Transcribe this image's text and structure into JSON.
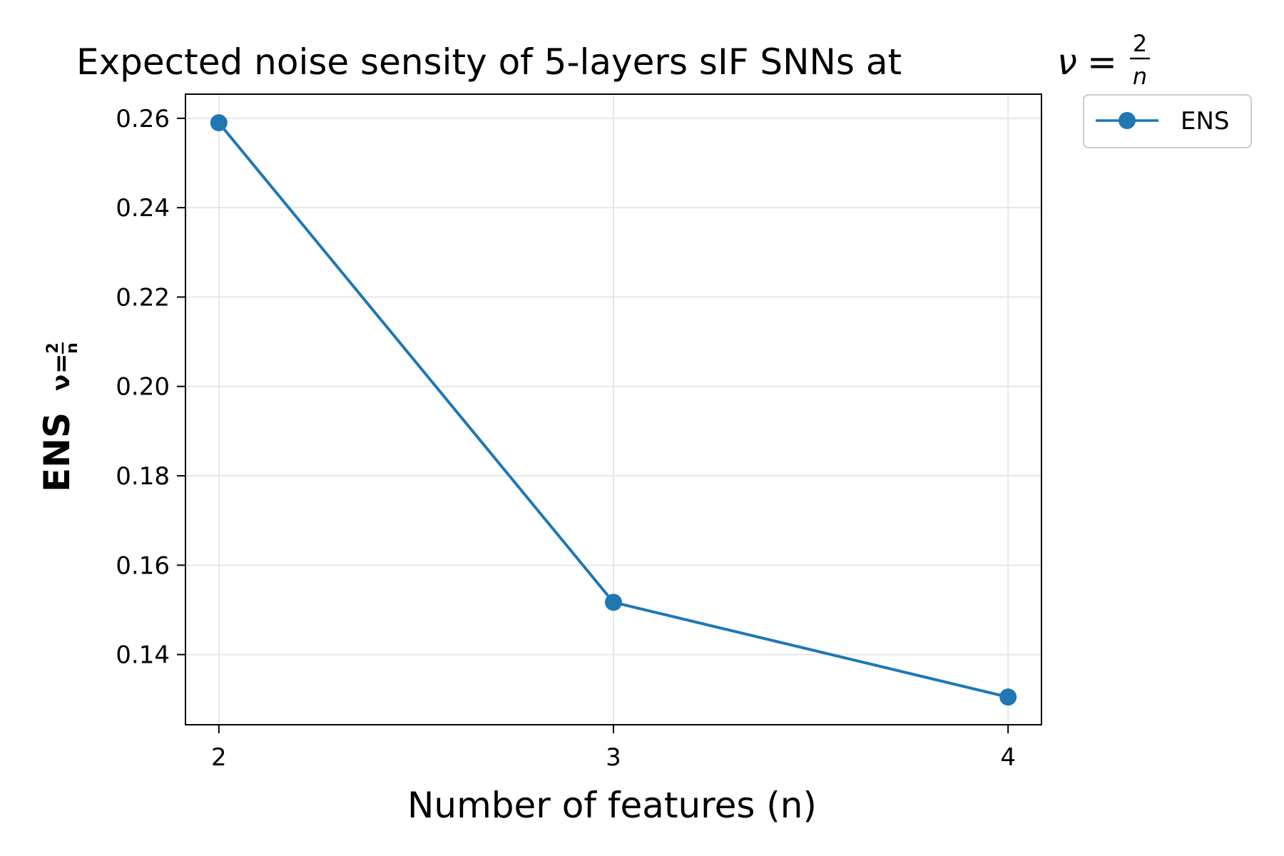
{
  "chart_data": {
    "type": "line",
    "title": "Expected noise sensity of 5-layers sIF SNNs at ν = 2/n",
    "title_text": "Expected noise sensity of 5-layers sIF SNNs at",
    "title_math": {
      "lhs": "ν",
      "eq": "=",
      "num": "2",
      "den": "n"
    },
    "xlabel": "Number of features (n)",
    "ylabel": "ENS ν = 2/n",
    "ylabel_parts": {
      "main": "ENS",
      "sub_var": "ν",
      "sub_eq": "=",
      "sub_num": "2",
      "sub_den": "n"
    },
    "x": [
      2,
      3,
      4
    ],
    "series": [
      {
        "name": "ENS",
        "values": [
          0.259,
          0.1517,
          0.1305
        ],
        "color": "#1f77b4"
      }
    ],
    "xticks": [
      2,
      3,
      4
    ],
    "xtick_labels": [
      "2",
      "3",
      "4"
    ],
    "yticks": [
      0.14,
      0.16,
      0.18,
      0.2,
      0.22,
      0.24,
      0.26
    ],
    "ytick_labels": [
      "0.14",
      "0.16",
      "0.18",
      "0.20",
      "0.22",
      "0.24",
      "0.26"
    ],
    "xlim": [
      1.9154,
      4.0846
    ],
    "ylim": [
      0.1243,
      0.2654
    ],
    "grid": true,
    "legend_position": "outside-top-right"
  }
}
